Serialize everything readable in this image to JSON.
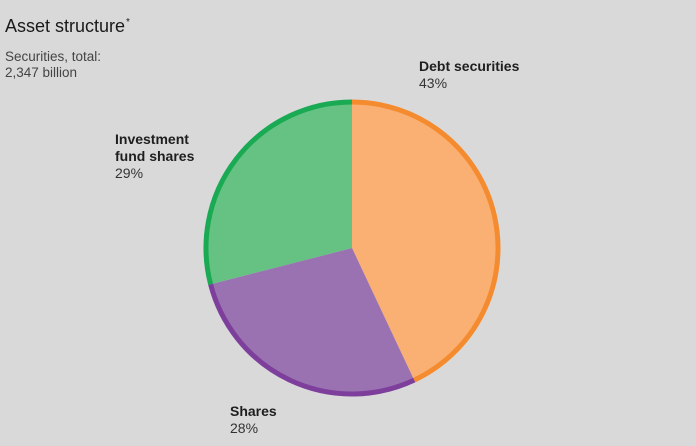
{
  "chart_data": {
    "type": "pie",
    "title": "Asset structure",
    "title_note_marker": "*",
    "subtitle_lines": [
      "Securities, total:",
      "2,347 billion"
    ],
    "slices": [
      {
        "label": "Debt securities",
        "label_lines": [
          "Debt securities"
        ],
        "percent_label": "43%",
        "value": 43,
        "fill": "#fbb073",
        "edge": "#f58b2f"
      },
      {
        "label": "Shares",
        "label_lines": [
          "Shares"
        ],
        "percent_label": "28%",
        "value": 28,
        "fill": "#9a72b2",
        "edge": "#7d3f9b"
      },
      {
        "label": "Investment fund shares",
        "label_lines": [
          "Investment",
          "fund shares"
        ],
        "percent_label": "29%",
        "value": 29,
        "fill": "#65c283",
        "edge": "#1aaa54"
      }
    ]
  }
}
